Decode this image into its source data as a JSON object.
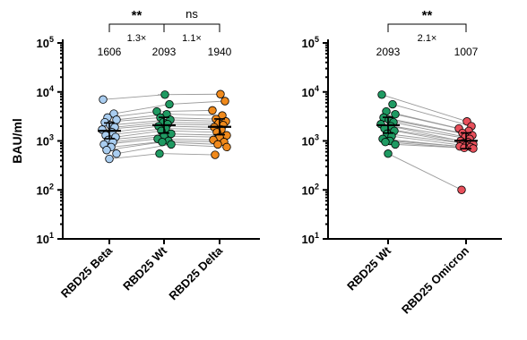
{
  "chart_data": [
    {
      "type": "scatter",
      "ylabel": "BAU/ml",
      "yscale": "log",
      "ylim": [
        10,
        100000
      ],
      "yticks": [
        "10^1",
        "10^2",
        "10^3",
        "10^4",
        "10^5"
      ],
      "categories": [
        "RBD25 Beta",
        "RBD25 Wt",
        "RBD25 Delta"
      ],
      "colors": [
        "#a9cdf0",
        "#1f9a62",
        "#f08a1c"
      ],
      "geometric_means": [
        1606,
        2093,
        1940
      ],
      "gm_labels": [
        "1606",
        "2093",
        "1940"
      ],
      "series": [
        {
          "name": "RBD25 Beta",
          "values": [
            7000,
            3600,
            3000,
            2700,
            2400,
            2100,
            1900,
            1700,
            1500,
            1300,
            1200,
            1050,
            950,
            850,
            750,
            650,
            550,
            430
          ]
        },
        {
          "name": "RBD25 Wt",
          "values": [
            8800,
            5600,
            4000,
            3500,
            3000,
            2700,
            2400,
            2200,
            2000,
            1800,
            1600,
            1400,
            1250,
            1100,
            1000,
            950,
            850,
            550
          ]
        },
        {
          "name": "RBD25 Delta",
          "values": [
            9000,
            6500,
            4200,
            3300,
            2800,
            2500,
            2300,
            2100,
            1900,
            1700,
            1500,
            1300,
            1200,
            1050,
            950,
            850,
            750,
            520
          ]
        }
      ],
      "comparisons": [
        {
          "from": "RBD25 Beta",
          "to": "RBD25 Wt",
          "significance": "**",
          "fold": "1.3×"
        },
        {
          "from": "RBD25 Wt",
          "to": "RBD25 Delta",
          "significance": "ns",
          "fold": "1.1×"
        }
      ]
    },
    {
      "type": "scatter",
      "ylabel": "",
      "yscale": "log",
      "ylim": [
        10,
        100000
      ],
      "yticks": [
        "10^1",
        "10^2",
        "10^3",
        "10^4",
        "10^5"
      ],
      "categories": [
        "RBD25 Wt",
        "RBD25 Omicron"
      ],
      "colors": [
        "#1f9a62",
        "#e8505b"
      ],
      "geometric_means": [
        2093,
        1007
      ],
      "gm_labels": [
        "2093",
        "1007"
      ],
      "series": [
        {
          "name": "RBD25 Wt",
          "values": [
            8800,
            5600,
            4000,
            3500,
            3000,
            2700,
            2400,
            2200,
            2000,
            1800,
            1600,
            1400,
            1250,
            1100,
            1000,
            950,
            850,
            550
          ]
        },
        {
          "name": "RBD25 Omicron",
          "values": [
            2500,
            2000,
            1800,
            1600,
            1450,
            1300,
            1200,
            1100,
            1000,
            950,
            900,
            850,
            800,
            770,
            750,
            720,
            700,
            100
          ]
        }
      ],
      "comparisons": [
        {
          "from": "RBD25 Wt",
          "to": "RBD25 Omicron",
          "significance": "**",
          "fold": "2.1×"
        }
      ]
    }
  ]
}
